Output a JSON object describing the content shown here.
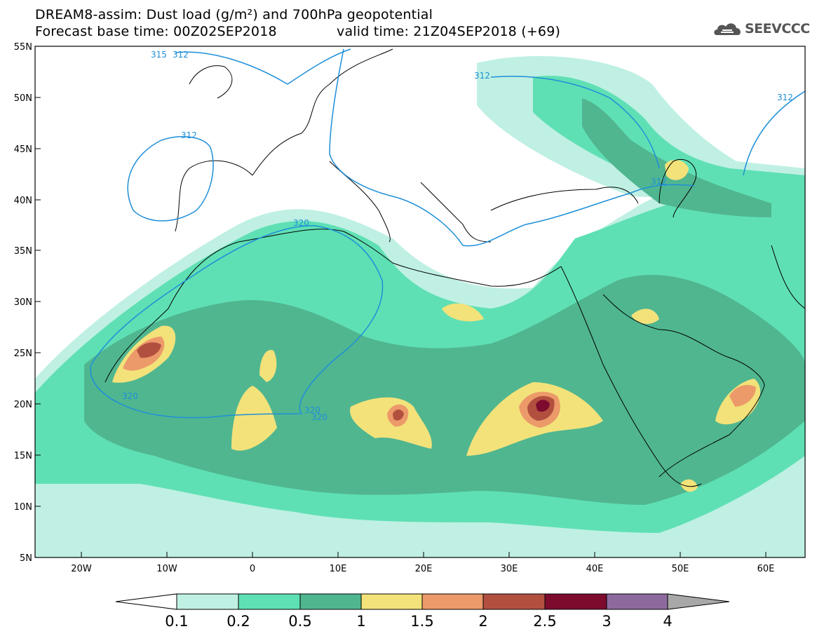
{
  "header": {
    "line1": "DREAM8-assim: Dust load (g/m²) and 700hPa geopotential",
    "forecast_base": "Forecast base time: 00Z02SEP2018",
    "valid_time": "valid time: 21Z04SEP2018 (+69)"
  },
  "logo": {
    "text": "SEEVCCC",
    "icon": "cloud-logo-icon"
  },
  "map": {
    "lat_ticks": [
      "55N",
      "50N",
      "45N",
      "40N",
      "35N",
      "30N",
      "25N",
      "20N",
      "15N",
      "10N",
      "5N"
    ],
    "lon_ticks": [
      "20W",
      "10W",
      "0",
      "10E",
      "20E",
      "30E",
      "40E",
      "50E",
      "60E"
    ],
    "contour_labels": [
      "315",
      "312",
      "312",
      "312",
      "312",
      "312",
      "320",
      "320",
      "320",
      "320"
    ],
    "contour_color": "#1f8fd8"
  },
  "colorbar": {
    "labels": [
      "0.1",
      "0.2",
      "0.5",
      "1",
      "1.5",
      "2",
      "2.5",
      "3",
      "4"
    ],
    "colors": [
      "#ffffff",
      "#bff0e3",
      "#5fe0b4",
      "#50b690",
      "#f3e27a",
      "#ec9a6a",
      "#b25040",
      "#7d0b2e",
      "#8d6a9e",
      "#a8a8a8"
    ]
  }
}
